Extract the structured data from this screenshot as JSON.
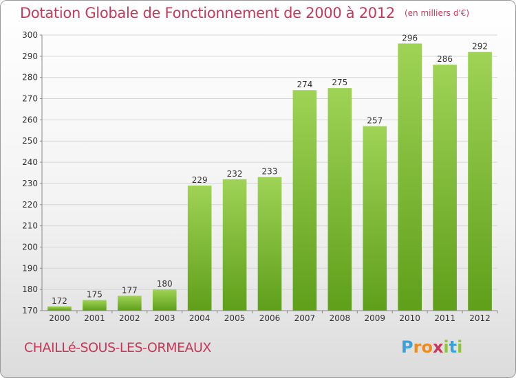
{
  "header": {
    "title": "Dotation Globale de Fonctionnement de 2000 à 2012",
    "unit": "(en milliers d'€)"
  },
  "footer": {
    "commune": "CHAILLé-SOUS-LES-ORMEAUX",
    "logo_letters": [
      "P",
      "r",
      "o",
      "x",
      "i",
      "t",
      "i"
    ],
    "logo_colors": [
      "#3b9fd8",
      "#f08a1c",
      "#f08a1c",
      "#c8385a",
      "#8fc43a",
      "#3b9fd8",
      "#8fc43a"
    ]
  },
  "chart_data": {
    "type": "bar",
    "title": "Dotation Globale de Fonctionnement de 2000 à 2012",
    "categories": [
      "2000",
      "2001",
      "2002",
      "2003",
      "2004",
      "2005",
      "2006",
      "2007",
      "2008",
      "2009",
      "2010",
      "2011",
      "2012"
    ],
    "values": [
      172,
      175,
      177,
      180,
      229,
      232,
      233,
      274,
      275,
      257,
      296,
      286,
      292
    ],
    "ylim": [
      170,
      300
    ],
    "yticks": [
      170,
      180,
      190,
      200,
      210,
      220,
      230,
      240,
      250,
      260,
      270,
      280,
      290,
      300
    ],
    "grid": true,
    "bar_color_top": "#9fd356",
    "bar_color_bottom": "#5f9f1a",
    "xlabel": "",
    "ylabel": ""
  }
}
